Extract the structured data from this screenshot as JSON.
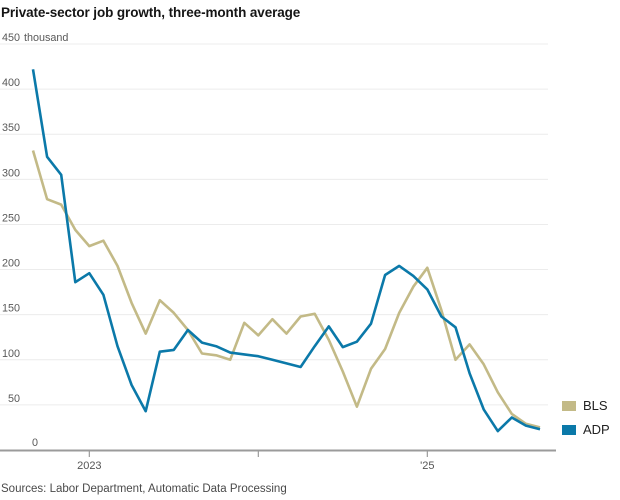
{
  "title": "Private-sector job growth, three-month average",
  "y_axis_top_label_value": "450",
  "y_axis_top_label_unit": "thousand",
  "source_note": "Sources: Labor Department, Automatic Data Processing",
  "legend": {
    "items": [
      {
        "label": "BLS",
        "color": "#c3ba87"
      },
      {
        "label": "ADP",
        "color": "#0b79a9"
      }
    ]
  },
  "chart_data": {
    "type": "line",
    "title": "Private-sector job growth, three-month average",
    "unit": "thousand",
    "ylim": [
      0,
      450
    ],
    "ytick_step": 50,
    "grid": true,
    "legend_position": "right-bottom",
    "x": [
      "2022-09",
      "2022-10",
      "2022-11",
      "2022-12",
      "2023-01",
      "2023-02",
      "2023-03",
      "2023-04",
      "2023-05",
      "2023-06",
      "2023-07",
      "2023-08",
      "2023-09",
      "2023-10",
      "2023-11",
      "2023-12",
      "2024-01",
      "2024-02",
      "2024-03",
      "2024-04",
      "2024-05",
      "2024-06",
      "2024-07",
      "2024-08",
      "2024-09",
      "2024-10",
      "2024-11",
      "2024-12",
      "2025-01",
      "2025-02",
      "2025-03",
      "2025-04",
      "2025-05",
      "2025-06",
      "2025-07",
      "2025-08",
      "2025-09"
    ],
    "xticks": [
      {
        "label": "2023",
        "month_index": 4
      },
      {
        "label": "",
        "month_index": 16
      },
      {
        "label": "'25",
        "month_index": 28
      }
    ],
    "series": [
      {
        "name": "BLS",
        "color": "#c3ba87",
        "values": [
          332,
          278,
          272,
          244,
          226,
          232,
          204,
          163,
          129,
          166,
          152,
          133,
          107,
          105,
          100,
          141,
          127,
          145,
          129,
          148,
          151,
          122,
          87,
          48,
          90,
          112,
          152,
          181,
          202,
          155,
          100,
          117,
          95,
          64,
          40,
          29,
          25
        ]
      },
      {
        "name": "ADP",
        "color": "#0b79a9",
        "values": [
          422,
          325,
          305,
          186,
          196,
          172,
          115,
          72,
          43,
          109,
          111,
          133,
          119,
          115,
          108,
          106,
          104,
          100,
          96,
          92,
          115,
          137,
          114,
          120,
          140,
          194,
          204,
          193,
          178,
          148,
          136,
          85,
          45,
          21,
          36,
          27,
          23
        ]
      }
    ]
  }
}
